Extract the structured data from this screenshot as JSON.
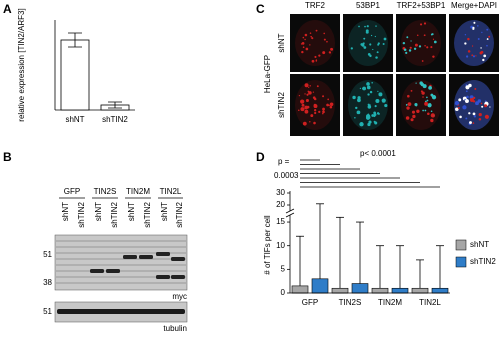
{
  "panel_labels": [
    "A",
    "B",
    "C",
    "D"
  ],
  "chart_data": [
    {
      "type": "bar",
      "ylabel": "relative expression [TIN2/ARF3]",
      "categories": [
        "shNT",
        "shTIN2"
      ],
      "values": [
        3.5,
        0.25
      ],
      "errors": [
        0.35,
        0.15
      ],
      "color": "#ffffff",
      "ylim": [
        0,
        4.5
      ]
    },
    {
      "type": "box",
      "ylabel": "# of TIFs per cell",
      "categories": [
        "GFP",
        "TIN2S",
        "TIN2M",
        "TIN2L"
      ],
      "series": [
        {
          "name": "shNT",
          "color": "#a6a6a6",
          "min": [
            0,
            0,
            0,
            0
          ],
          "q1": [
            0,
            0,
            0,
            0
          ],
          "median": [
            0,
            0,
            0,
            0
          ],
          "q3": [
            1.5,
            1,
            1,
            1
          ],
          "max": [
            12,
            16,
            10,
            7
          ]
        },
        {
          "name": "shTIN2",
          "color": "#2f7dc8",
          "min": [
            0,
            0,
            0,
            0
          ],
          "q1": [
            0,
            0,
            0,
            0
          ],
          "median": [
            0,
            0,
            0,
            0
          ],
          "q3": [
            3,
            2,
            1,
            1
          ],
          "max": [
            21,
            15,
            10,
            10
          ]
        }
      ],
      "ylim": [
        0,
        30
      ],
      "yticks": [
        0,
        5,
        10,
        15,
        20,
        30
      ],
      "annotations": [
        "p =",
        "0.0003",
        "p< 0.0001"
      ]
    }
  ],
  "blot": {
    "groups": [
      "GFP",
      "TIN2S",
      "TIN2M",
      "TIN2L"
    ],
    "lanes": [
      "shNT",
      "shTIN2",
      "shNT",
      "shTIN2",
      "shNT",
      "shTIN2",
      "shNT",
      "shTIN2"
    ],
    "markers": [
      "51",
      "38"
    ],
    "tubulin_marker": "51",
    "antibodies": [
      "myc",
      "tubulin"
    ]
  },
  "microscopy": {
    "columns": [
      "TRF2",
      "53BP1",
      "TRF2+53BP1",
      "Merge+DAPI"
    ],
    "rows": [
      "shNT",
      "shTIN2"
    ],
    "cell_line": "HeLa-GFP"
  }
}
